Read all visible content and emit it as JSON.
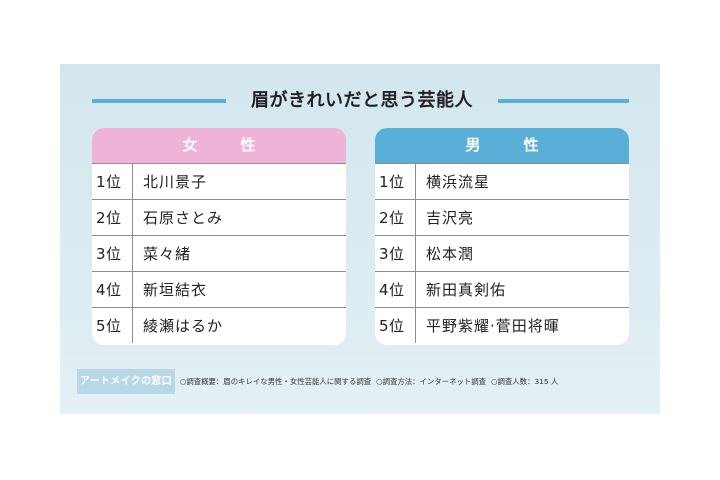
{
  "title": "眉がきれいだと思う芸能人",
  "accent_colors": {
    "female_header": "#f0b3d8",
    "male_header": "#5aafd8",
    "title_line": "#5aafd6",
    "panel_bg": "#d3e6ee"
  },
  "female": {
    "header": "女　性",
    "rows": [
      {
        "rank": "1位",
        "name": "北川景子"
      },
      {
        "rank": "2位",
        "name": "石原さとみ"
      },
      {
        "rank": "3位",
        "name": "菜々緒"
      },
      {
        "rank": "4位",
        "name": "新垣結衣"
      },
      {
        "rank": "5位",
        "name": "綾瀬はるか"
      }
    ]
  },
  "male": {
    "header": "男　性",
    "rows": [
      {
        "rank": "1位",
        "name": "横浜流星"
      },
      {
        "rank": "2位",
        "name": "吉沢亮"
      },
      {
        "rank": "3位",
        "name": "松本潤"
      },
      {
        "rank": "4位",
        "name": "新田真剣佑"
      },
      {
        "rank": "5位",
        "name": "平野紫耀·菅田将暉"
      }
    ]
  },
  "footer": {
    "brand": "アートメイクの窓口",
    "survey_summary": "○調査概要：眉のキレイな男性・女性芸能人に関する調査",
    "survey_method": "○調査方法：インターネット調査",
    "survey_count": "○調査人数：315 人"
  }
}
